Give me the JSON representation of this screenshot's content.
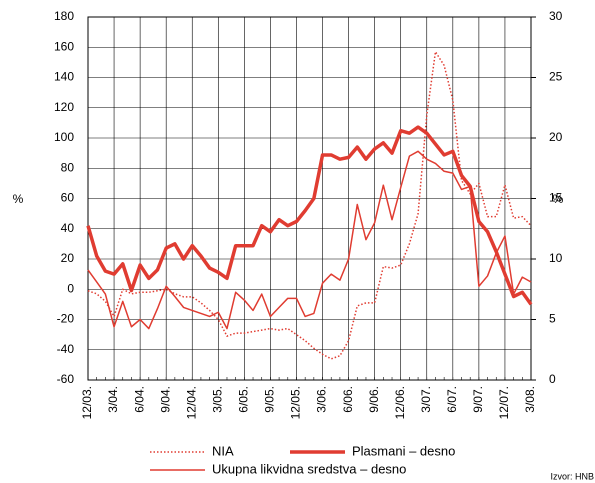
{
  "chart_data": {
    "type": "line",
    "categories": [
      "12/03.",
      null,
      null,
      "3/04.",
      null,
      null,
      "6/04.",
      null,
      null,
      "9/04.",
      null,
      null,
      "12/04.",
      null,
      null,
      "3/05.",
      null,
      null,
      "6/05.",
      null,
      null,
      "9/05.",
      null,
      null,
      "12/05.",
      null,
      null,
      "3/06.",
      null,
      null,
      "6/06.",
      null,
      null,
      "9/06.",
      null,
      null,
      "12/06.",
      null,
      null,
      "3/07.",
      null,
      null,
      "6/07.",
      null,
      null,
      "9/07.",
      null,
      null,
      "12/07.",
      null,
      null,
      "3/08."
    ],
    "series": [
      {
        "name": "NIA",
        "color": "#e03c31",
        "style": "dotted",
        "values": [
          -1,
          -3,
          -8,
          -18,
          0,
          -3,
          -2,
          -2,
          -1,
          0,
          -3,
          -5,
          -5,
          -9,
          -14,
          -20,
          -31,
          -29,
          -29,
          -28,
          -27,
          -26,
          -27,
          -26,
          -30,
          -34,
          -39,
          -43,
          -46,
          -44,
          -34,
          -11,
          -9,
          -9,
          15,
          14,
          16,
          30,
          50,
          115,
          157,
          148,
          125,
          72,
          63,
          70,
          48,
          48,
          69,
          47,
          48,
          42
        ]
      },
      {
        "name": "Plasmani – desno",
        "color": "#e03c31",
        "style": "thick",
        "axis": "y2",
        "values": [
          12.75,
          10.25,
          9,
          8.75,
          9.6,
          7.4,
          9.5,
          8.4,
          9.1,
          10.9,
          11.25,
          10,
          11.1,
          10.25,
          9.25,
          8.9,
          8.4,
          11.1,
          11.1,
          11.1,
          12.75,
          12.25,
          13.25,
          12.75,
          13.1,
          14,
          15,
          18.6,
          18.6,
          18.25,
          18.4,
          19.25,
          18.25,
          19.1,
          19.6,
          18.75,
          20.6,
          20.4,
          20.9,
          20.4,
          19.5,
          18.6,
          18.9,
          16.9,
          16,
          13.1,
          12.25,
          10.6,
          8.75,
          6.9,
          7.25,
          6.25
        ]
      },
      {
        "name": "Ukupna likvidna sredstva – desno",
        "color": "#e03c31",
        "style": "thin",
        "axis": "y2",
        "values": [
          9.1,
          8.1,
          7.1,
          4.4,
          6.5,
          4.4,
          5,
          4.25,
          5.9,
          7.75,
          6.9,
          6,
          5.75,
          5.5,
          5.25,
          5.6,
          4.25,
          7.25,
          6.6,
          5.75,
          7.1,
          5.25,
          6,
          6.75,
          6.75,
          5.25,
          5.5,
          8,
          8.75,
          8.25,
          10,
          14.5,
          11.6,
          13,
          16.1,
          13.25,
          15.9,
          18.5,
          18.9,
          18.25,
          17.9,
          17.25,
          17.1,
          15.75,
          16,
          7.75,
          8.6,
          10.5,
          11.9,
          7.1,
          8.5,
          8.1
        ]
      }
    ],
    "ylabel": "%",
    "y2label": "%",
    "ylim": [
      -60,
      180
    ],
    "yticks": [
      -60,
      -40,
      -20,
      0,
      20,
      40,
      60,
      80,
      100,
      120,
      140,
      160,
      180
    ],
    "y2lim": [
      0,
      30
    ],
    "y2ticks": [
      0,
      5,
      10,
      15,
      20,
      25,
      30
    ],
    "grid": true,
    "source": "Izvor: HNB"
  }
}
